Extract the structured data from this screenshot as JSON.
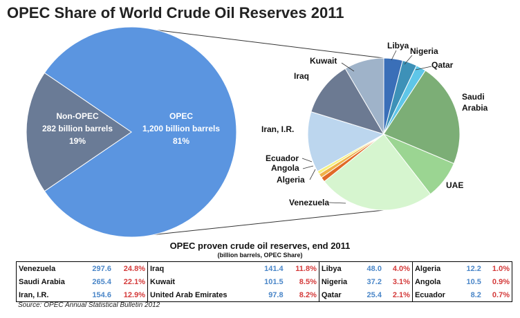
{
  "title": "OPEC Share of World Crude Oil Reserves 2011",
  "chart_data": [
    {
      "type": "pie",
      "name": "world-reserves",
      "slices": [
        {
          "label": "OPEC",
          "value": 1200,
          "text": "1,200 billion barrels",
          "share": "81%",
          "color": "#5b95e0"
        },
        {
          "label": "Non-OPEC",
          "value": 282,
          "text": "282 billion barrels",
          "share": "19%",
          "color": "#6a7b96"
        }
      ]
    },
    {
      "type": "pie",
      "name": "opec-countries",
      "slices": [
        {
          "label": "Libya",
          "value": 48.0,
          "color": "#3a6fb8"
        },
        {
          "label": "Nigeria",
          "value": 37.2,
          "color": "#3d91b8"
        },
        {
          "label": "Qatar",
          "value": 25.4,
          "color": "#5fc6e8"
        },
        {
          "label": "Saudi Arabia",
          "value": 265.4,
          "color": "#7cae76"
        },
        {
          "label": "UAE",
          "value": 97.8,
          "color": "#9bd592"
        },
        {
          "label": "Venezuela",
          "value": 297.6,
          "color": "#d6f5cf"
        },
        {
          "label": "Algeria",
          "value": 12.2,
          "color": "#e06a28"
        },
        {
          "label": "Angola",
          "value": 10.5,
          "color": "#f0b24a"
        },
        {
          "label": "Ecuador",
          "value": 8.2,
          "color": "#f6f280"
        },
        {
          "label": "Iran, I.R.",
          "value": 154.6,
          "color": "#bcd6ee"
        },
        {
          "label": "Iraq",
          "value": 141.4,
          "color": "#6c7a92"
        },
        {
          "label": "Kuwait",
          "value": 101.5,
          "color": "#9fb3c9"
        }
      ]
    }
  ],
  "table": {
    "title": "OPEC proven crude oil reserves, end 2011",
    "subtitle": "(billion barrels, OPEC Share)",
    "rows": [
      [
        {
          "name": "Venezuela",
          "value": "297.6",
          "share": "24.8%"
        },
        {
          "name": "Iraq",
          "value": "141.4",
          "share": "11.8%"
        },
        {
          "name": "Libya",
          "value": "48.0",
          "share": "4.0%"
        },
        {
          "name": "Algeria",
          "value": "12.2",
          "share": "1.0%"
        }
      ],
      [
        {
          "name": "Saudi Arabia",
          "value": "265.4",
          "share": "22.1%"
        },
        {
          "name": "Kuwait",
          "value": "101.5",
          "share": "8.5%"
        },
        {
          "name": "Nigeria",
          "value": "37.2",
          "share": "3.1%"
        },
        {
          "name": "Angola",
          "value": "10.5",
          "share": "0.9%"
        }
      ],
      [
        {
          "name": "Iran, I.R.",
          "value": "154.6",
          "share": "12.9%"
        },
        {
          "name": "United Arab Emirates",
          "value": "97.8",
          "share": "8.2%"
        },
        {
          "name": "Qatar",
          "value": "25.4",
          "share": "2.1%"
        },
        {
          "name": "Ecuador",
          "value": "8.2",
          "share": "0.7%"
        }
      ]
    ]
  },
  "source": "Source: OPEC Annual Statistical Bulletin 2012"
}
